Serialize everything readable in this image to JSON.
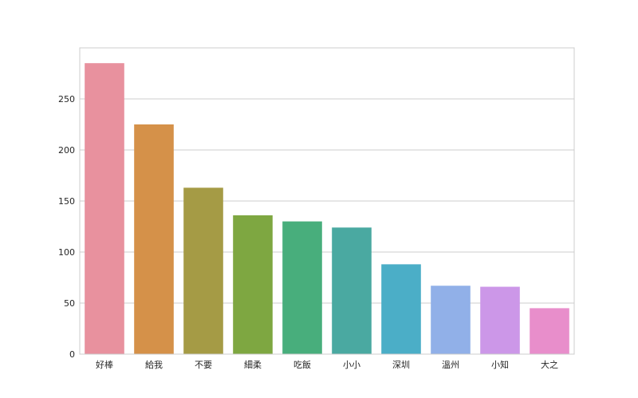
{
  "chart_data": {
    "type": "bar",
    "categories": [
      "好棒",
      "給我",
      "不要",
      "細柔",
      "吃飯",
      "小小",
      "深圳",
      "溫州",
      "小知",
      "大之"
    ],
    "values": [
      285,
      225,
      163,
      136,
      130,
      124,
      88,
      67,
      66,
      45
    ],
    "colors": [
      "#e8919e",
      "#d59149",
      "#a59b45",
      "#7ea741",
      "#48ae7c",
      "#4aa9a1",
      "#4baec7",
      "#91b0e8",
      "#cc97e8",
      "#e88ecb"
    ],
    "ylim": [
      0,
      300
    ],
    "yticks": [
      0,
      50,
      100,
      150,
      200,
      250
    ],
    "grid": true
  }
}
